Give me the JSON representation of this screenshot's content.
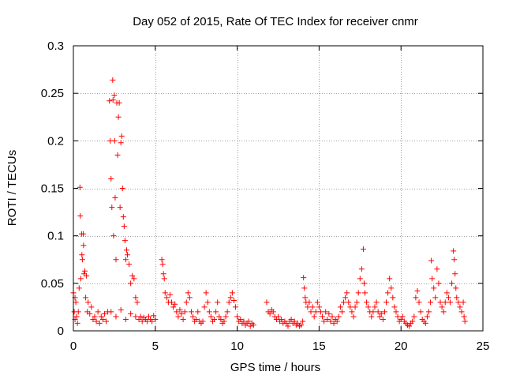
{
  "chart_data": {
    "type": "scatter",
    "title": "Day 052 of 2015, Rate Of TEC Index for receiver cnmr",
    "xlabel": "GPS time / hours",
    "ylabel": "ROTI / TECUs",
    "xlim": [
      0,
      25
    ],
    "ylim": [
      0,
      0.3
    ],
    "x_ticks": [
      0,
      5,
      10,
      15,
      20,
      25
    ],
    "y_ticks": [
      0,
      0.05,
      0.1,
      0.15,
      0.2,
      0.25,
      0.3
    ],
    "x_tick_labels": [
      "0",
      "5",
      "10",
      "15",
      "20",
      "25"
    ],
    "y_tick_labels": [
      "0",
      "0.05",
      "0.1",
      "0.15",
      "0.2",
      "0.25",
      "0.3"
    ],
    "grid": true,
    "marker": "+",
    "series": [
      {
        "name": "ROTI",
        "color": "#ff0000",
        "points": [
          [
            0.0,
            0.04
          ],
          [
            0.05,
            0.02
          ],
          [
            0.1,
            0.035
          ],
          [
            0.1,
            0.012
          ],
          [
            0.15,
            0.03
          ],
          [
            0.2,
            0.015
          ],
          [
            0.25,
            0.008
          ],
          [
            0.3,
            0.02
          ],
          [
            0.35,
            0.045
          ],
          [
            0.4,
            0.151
          ],
          [
            0.42,
            0.121
          ],
          [
            0.45,
            0.055
          ],
          [
            0.5,
            0.102
          ],
          [
            0.52,
            0.08
          ],
          [
            0.55,
            0.075
          ],
          [
            0.6,
            0.102
          ],
          [
            0.62,
            0.09
          ],
          [
            0.65,
            0.06
          ],
          [
            0.7,
            0.063
          ],
          [
            0.75,
            0.035
          ],
          [
            0.8,
            0.058
          ],
          [
            0.85,
            0.02
          ],
          [
            0.9,
            0.03
          ],
          [
            1.0,
            0.018
          ],
          [
            1.1,
            0.025
          ],
          [
            1.2,
            0.012
          ],
          [
            1.3,
            0.015
          ],
          [
            1.4,
            0.01
          ],
          [
            1.5,
            0.02
          ],
          [
            1.6,
            0.008
          ],
          [
            1.7,
            0.015
          ],
          [
            1.8,
            0.012
          ],
          [
            1.9,
            0.018
          ],
          [
            2.0,
            0.01
          ],
          [
            2.1,
            0.02
          ],
          [
            2.2,
            0.242
          ],
          [
            2.25,
            0.2
          ],
          [
            2.3,
            0.16
          ],
          [
            2.35,
            0.13
          ],
          [
            2.4,
            0.264
          ],
          [
            2.42,
            0.243
          ],
          [
            2.45,
            0.1
          ],
          [
            2.5,
            0.248
          ],
          [
            2.52,
            0.2
          ],
          [
            2.55,
            0.14
          ],
          [
            2.6,
            0.075
          ],
          [
            2.65,
            0.24
          ],
          [
            2.7,
            0.185
          ],
          [
            2.75,
            0.225
          ],
          [
            2.8,
            0.24
          ],
          [
            2.85,
            0.13
          ],
          [
            2.9,
            0.198
          ],
          [
            2.95,
            0.205
          ],
          [
            3.0,
            0.15
          ],
          [
            3.05,
            0.12
          ],
          [
            3.1,
            0.11
          ],
          [
            3.15,
            0.095
          ],
          [
            3.2,
            0.075
          ],
          [
            3.25,
            0.085
          ],
          [
            3.3,
            0.08
          ],
          [
            3.4,
            0.07
          ],
          [
            3.5,
            0.05
          ],
          [
            3.6,
            0.058
          ],
          [
            3.7,
            0.055
          ],
          [
            3.8,
            0.035
          ],
          [
            3.9,
            0.03
          ],
          [
            2.3,
            0.02
          ],
          [
            2.6,
            0.015
          ],
          [
            2.9,
            0.022
          ],
          [
            3.2,
            0.012
          ],
          [
            3.5,
            0.018
          ],
          [
            3.8,
            0.015
          ],
          [
            4.0,
            0.012
          ],
          [
            4.1,
            0.015
          ],
          [
            4.2,
            0.01
          ],
          [
            4.3,
            0.014
          ],
          [
            4.4,
            0.012
          ],
          [
            4.5,
            0.01
          ],
          [
            4.6,
            0.015
          ],
          [
            4.7,
            0.012
          ],
          [
            4.8,
            0.01
          ],
          [
            4.9,
            0.016
          ],
          [
            5.0,
            0.012
          ],
          [
            5.4,
            0.075
          ],
          [
            5.45,
            0.07
          ],
          [
            5.5,
            0.06
          ],
          [
            5.55,
            0.055
          ],
          [
            5.6,
            0.04
          ],
          [
            5.7,
            0.035
          ],
          [
            5.8,
            0.03
          ],
          [
            5.9,
            0.038
          ],
          [
            6.0,
            0.03
          ],
          [
            6.1,
            0.025
          ],
          [
            6.2,
            0.028
          ],
          [
            6.3,
            0.02
          ],
          [
            6.4,
            0.015
          ],
          [
            6.5,
            0.022
          ],
          [
            6.6,
            0.018
          ],
          [
            6.7,
            0.012
          ],
          [
            6.8,
            0.02
          ],
          [
            6.9,
            0.03
          ],
          [
            7.0,
            0.04
          ],
          [
            7.1,
            0.035
          ],
          [
            7.2,
            0.02
          ],
          [
            7.3,
            0.015
          ],
          [
            7.4,
            0.01
          ],
          [
            7.5,
            0.012
          ],
          [
            7.6,
            0.02
          ],
          [
            7.7,
            0.01
          ],
          [
            7.8,
            0.008
          ],
          [
            7.9,
            0.01
          ],
          [
            8.0,
            0.025
          ],
          [
            8.1,
            0.04
          ],
          [
            8.2,
            0.03
          ],
          [
            8.3,
            0.02
          ],
          [
            8.4,
            0.015
          ],
          [
            8.5,
            0.01
          ],
          [
            8.6,
            0.012
          ],
          [
            8.7,
            0.02
          ],
          [
            8.8,
            0.03
          ],
          [
            8.9,
            0.015
          ],
          [
            9.0,
            0.012
          ],
          [
            9.1,
            0.008
          ],
          [
            9.2,
            0.01
          ],
          [
            9.3,
            0.015
          ],
          [
            9.4,
            0.02
          ],
          [
            9.5,
            0.03
          ],
          [
            9.6,
            0.035
          ],
          [
            9.7,
            0.04
          ],
          [
            9.8,
            0.032
          ],
          [
            9.9,
            0.025
          ],
          [
            10.0,
            0.015
          ],
          [
            10.1,
            0.01
          ],
          [
            10.2,
            0.012
          ],
          [
            10.3,
            0.008
          ],
          [
            10.4,
            0.01
          ],
          [
            10.5,
            0.006
          ],
          [
            10.6,
            0.008
          ],
          [
            10.7,
            0.01
          ],
          [
            10.8,
            0.005
          ],
          [
            10.9,
            0.008
          ],
          [
            11.0,
            0.006
          ],
          [
            11.8,
            0.03
          ],
          [
            11.9,
            0.02
          ],
          [
            12.0,
            0.018
          ],
          [
            12.1,
            0.022
          ],
          [
            12.2,
            0.02
          ],
          [
            12.3,
            0.015
          ],
          [
            12.4,
            0.012
          ],
          [
            12.5,
            0.015
          ],
          [
            12.6,
            0.01
          ],
          [
            12.7,
            0.012
          ],
          [
            12.8,
            0.008
          ],
          [
            12.9,
            0.01
          ],
          [
            13.0,
            0.008
          ],
          [
            13.1,
            0.005
          ],
          [
            13.2,
            0.01
          ],
          [
            13.3,
            0.012
          ],
          [
            13.4,
            0.008
          ],
          [
            13.5,
            0.01
          ],
          [
            13.6,
            0.006
          ],
          [
            13.7,
            0.008
          ],
          [
            13.8,
            0.005
          ],
          [
            13.9,
            0.006
          ],
          [
            14.0,
            0.01
          ],
          [
            14.05,
            0.056
          ],
          [
            14.1,
            0.045
          ],
          [
            14.15,
            0.035
          ],
          [
            14.2,
            0.03
          ],
          [
            14.3,
            0.025
          ],
          [
            14.4,
            0.03
          ],
          [
            14.5,
            0.02
          ],
          [
            14.6,
            0.025
          ],
          [
            14.7,
            0.015
          ],
          [
            14.8,
            0.02
          ],
          [
            14.9,
            0.03
          ],
          [
            15.0,
            0.025
          ],
          [
            15.1,
            0.02
          ],
          [
            15.2,
            0.015
          ],
          [
            15.3,
            0.01
          ],
          [
            15.4,
            0.02
          ],
          [
            15.5,
            0.012
          ],
          [
            15.6,
            0.018
          ],
          [
            15.7,
            0.01
          ],
          [
            15.8,
            0.015
          ],
          [
            15.9,
            0.008
          ],
          [
            16.0,
            0.012
          ],
          [
            16.1,
            0.01
          ],
          [
            16.2,
            0.015
          ],
          [
            16.3,
            0.025
          ],
          [
            16.4,
            0.02
          ],
          [
            16.5,
            0.03
          ],
          [
            16.6,
            0.035
          ],
          [
            16.7,
            0.04
          ],
          [
            16.8,
            0.03
          ],
          [
            16.9,
            0.025
          ],
          [
            17.0,
            0.02
          ],
          [
            17.1,
            0.015
          ],
          [
            17.2,
            0.025
          ],
          [
            17.3,
            0.03
          ],
          [
            17.4,
            0.04
          ],
          [
            17.5,
            0.055
          ],
          [
            17.6,
            0.065
          ],
          [
            17.7,
            0.086
          ],
          [
            17.75,
            0.05
          ],
          [
            17.8,
            0.04
          ],
          [
            17.9,
            0.03
          ],
          [
            18.0,
            0.025
          ],
          [
            18.1,
            0.02
          ],
          [
            18.2,
            0.015
          ],
          [
            18.3,
            0.02
          ],
          [
            18.4,
            0.025
          ],
          [
            18.5,
            0.03
          ],
          [
            18.6,
            0.02
          ],
          [
            18.7,
            0.015
          ],
          [
            18.8,
            0.018
          ],
          [
            18.9,
            0.012
          ],
          [
            19.0,
            0.02
          ],
          [
            19.1,
            0.03
          ],
          [
            19.2,
            0.04
          ],
          [
            19.3,
            0.055
          ],
          [
            19.4,
            0.045
          ],
          [
            19.5,
            0.035
          ],
          [
            19.6,
            0.025
          ],
          [
            19.7,
            0.02
          ],
          [
            19.8,
            0.015
          ],
          [
            19.9,
            0.01
          ],
          [
            20.0,
            0.012
          ],
          [
            20.1,
            0.015
          ],
          [
            20.2,
            0.01
          ],
          [
            20.3,
            0.008
          ],
          [
            20.4,
            0.006
          ],
          [
            20.5,
            0.005
          ],
          [
            20.6,
            0.008
          ],
          [
            20.7,
            0.01
          ],
          [
            20.8,
            0.015
          ],
          [
            20.9,
            0.035
          ],
          [
            21.0,
            0.042
          ],
          [
            21.1,
            0.03
          ],
          [
            21.2,
            0.02
          ],
          [
            21.3,
            0.012
          ],
          [
            21.4,
            0.01
          ],
          [
            21.5,
            0.008
          ],
          [
            21.6,
            0.015
          ],
          [
            21.7,
            0.02
          ],
          [
            21.8,
            0.03
          ],
          [
            21.85,
            0.074
          ],
          [
            21.9,
            0.055
          ],
          [
            22.0,
            0.045
          ],
          [
            22.1,
            0.035
          ],
          [
            22.2,
            0.065
          ],
          [
            22.3,
            0.05
          ],
          [
            22.4,
            0.03
          ],
          [
            22.5,
            0.025
          ],
          [
            22.6,
            0.02
          ],
          [
            22.7,
            0.03
          ],
          [
            22.8,
            0.04
          ],
          [
            22.9,
            0.035
          ],
          [
            23.0,
            0.03
          ],
          [
            23.1,
            0.05
          ],
          [
            23.2,
            0.084
          ],
          [
            23.25,
            0.075
          ],
          [
            23.3,
            0.06
          ],
          [
            23.35,
            0.045
          ],
          [
            23.4,
            0.035
          ],
          [
            23.5,
            0.03
          ],
          [
            23.6,
            0.025
          ],
          [
            23.7,
            0.02
          ],
          [
            23.8,
            0.03
          ],
          [
            23.85,
            0.015
          ],
          [
            23.9,
            0.01
          ]
        ]
      }
    ]
  }
}
